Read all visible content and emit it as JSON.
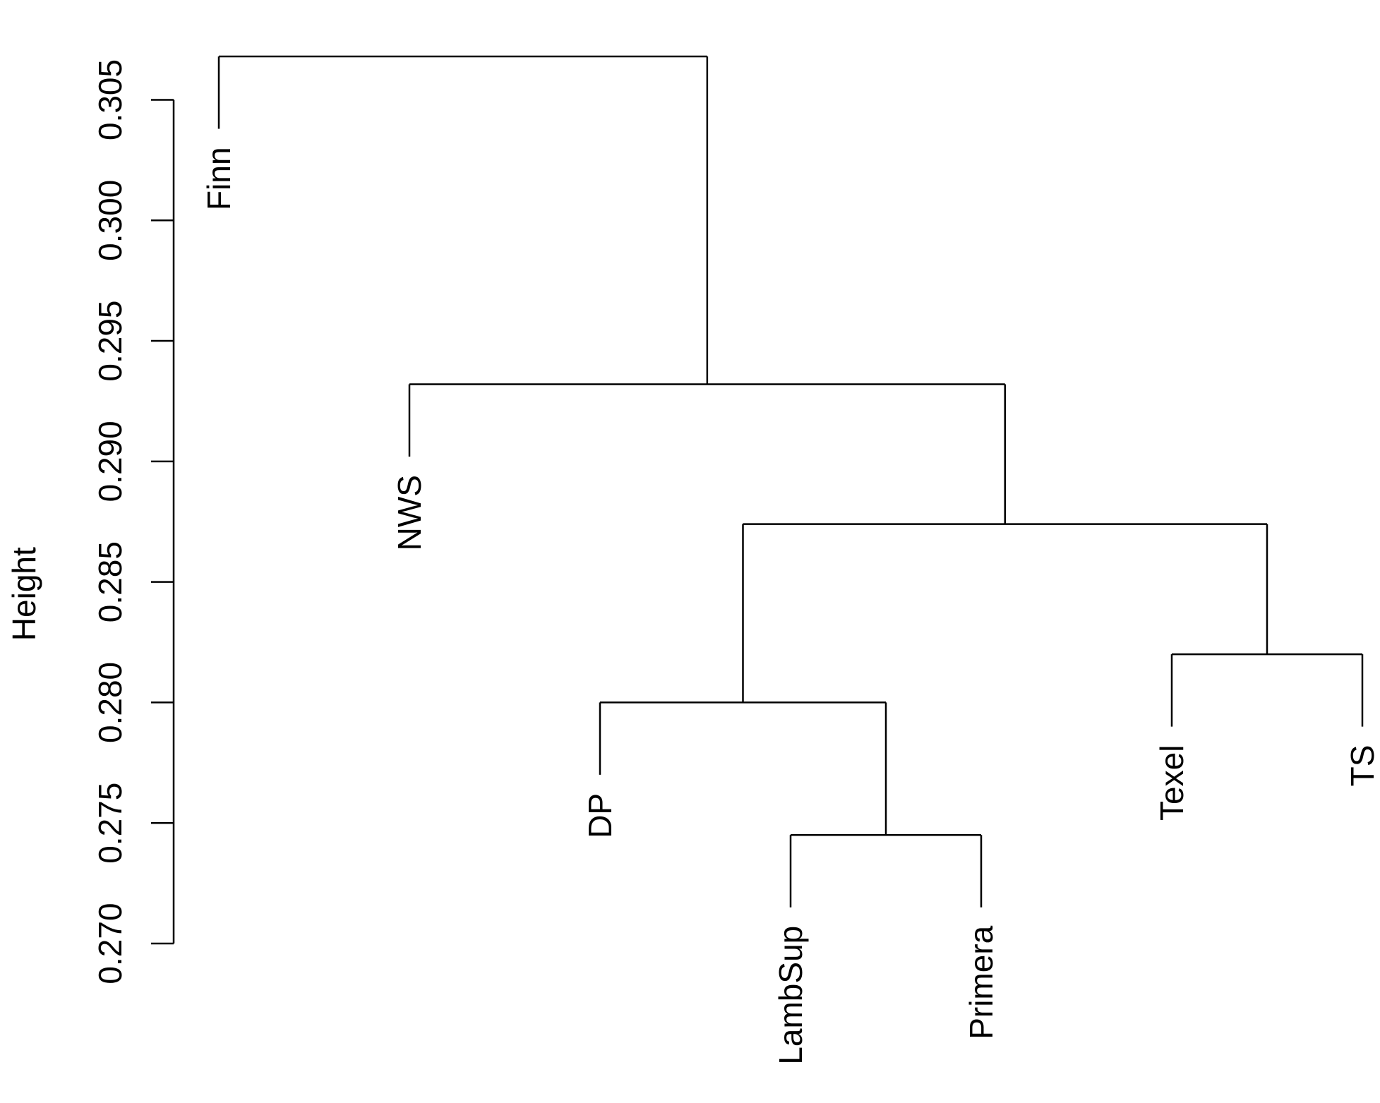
{
  "chart_data": {
    "type": "dendrogram",
    "title": "",
    "xlabel": "",
    "ylabel": "Height",
    "ylim": [
      0.27,
      0.3065
    ],
    "yticks": [
      0.27,
      0.275,
      0.28,
      0.285,
      0.29,
      0.295,
      0.3,
      0.305
    ],
    "ytick_labels": [
      "0.270",
      "0.275",
      "0.280",
      "0.285",
      "0.290",
      "0.295",
      "0.300",
      "0.305"
    ],
    "hang": 0.003,
    "leaves": [
      "Finn",
      "NWS",
      "DP",
      "LambSup",
      "Primera",
      "Texel",
      "TS"
    ],
    "merges": [
      {
        "children": [
          "LambSup",
          "Primera"
        ],
        "height": 0.2745
      },
      {
        "children": [
          "Texel",
          "TS"
        ],
        "height": 0.282
      },
      {
        "children": [
          "DP",
          "LambSup+Primera"
        ],
        "height": 0.28
      },
      {
        "children": [
          "DP+LambSup+Primera",
          "Texel+TS"
        ],
        "height": 0.2874
      },
      {
        "children": [
          "NWS",
          "DP+LambSup+Primera+Texel+TS"
        ],
        "height": 0.2932
      },
      {
        "children": [
          "Finn",
          "NWS+DP+LambSup+Primera+Texel+TS"
        ],
        "height": 0.3068
      }
    ]
  }
}
